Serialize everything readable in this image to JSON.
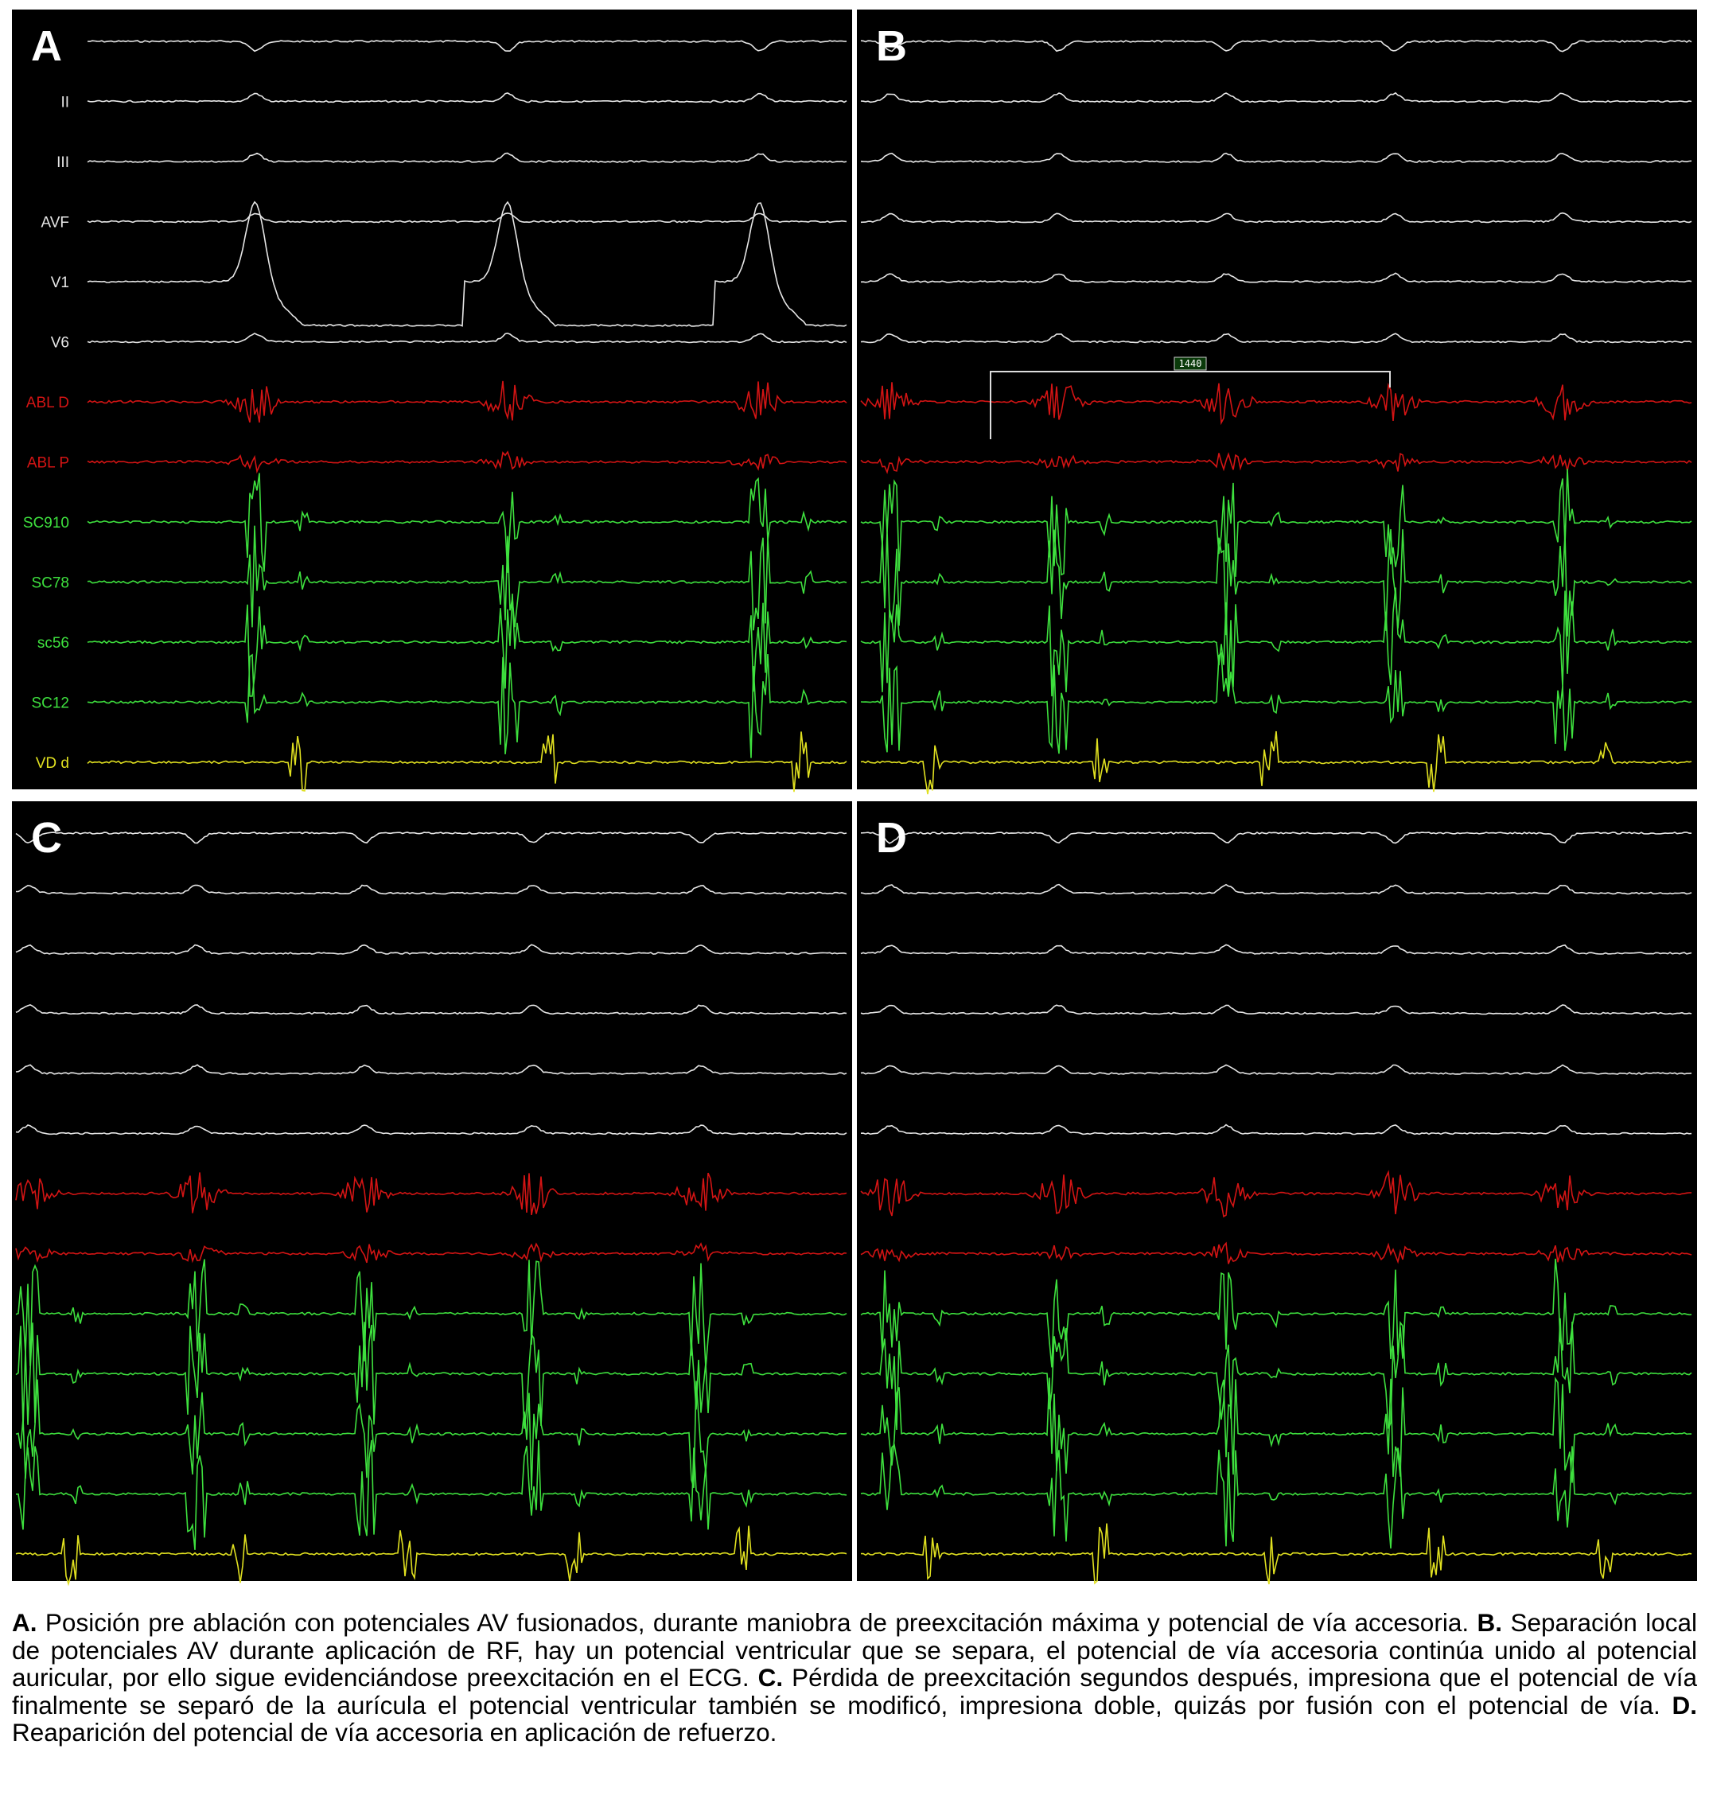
{
  "panels": [
    {
      "letter": "A",
      "channels": [
        "II",
        "III",
        "AVF",
        "V1",
        "V6",
        "ABL D",
        "ABL P",
        "SC910",
        "SC78",
        "sc56",
        "SC12",
        "VD d"
      ]
    },
    {
      "letter": "B",
      "measurement": "1440"
    },
    {
      "letter": "C"
    },
    {
      "letter": "D"
    }
  ],
  "caption": [
    {
      "label": "A.",
      "text": "Posición pre ablación con potenciales AV fusionados, durante maniobra de preexcitación máxima y potencial de vía accesoria."
    },
    {
      "label": "B.",
      "text": "Separación local de potenciales AV durante aplicación de RF, hay un potencial ventricular que se separa, el potencial de vía accesoria continúa unido al potencial auricular, por ello sigue evidenciándose preexcitación en el ECG."
    },
    {
      "label": "C.",
      "text": "Pérdida de preexcitación segundos después, impresiona que el potencial de vía finalmente se separó de la aurícula el potencial ventricular también se modificó, impresiona doble, quizás por fusión con el potencial de vía."
    },
    {
      "label": "D.",
      "text": "Reaparición del potencial de vía accesoria en aplicación de refuerzo."
    }
  ]
}
